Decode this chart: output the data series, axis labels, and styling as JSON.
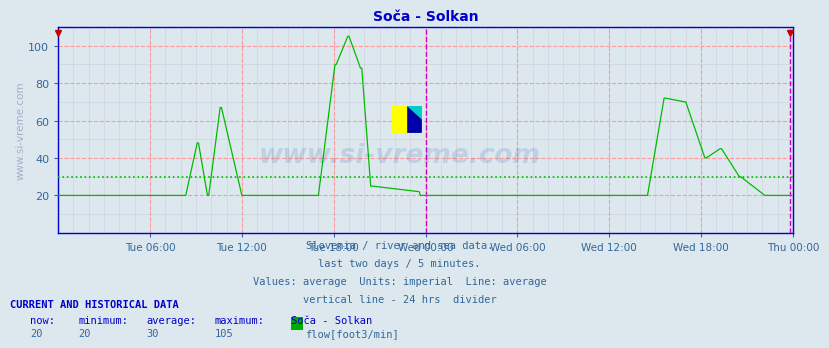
{
  "title": "Soča - Solkan",
  "title_color": "#0000cc",
  "bg_color": "#dde8ee",
  "plot_bg_color": "#dde8ee",
  "ylabel_text": "www.si-vreme.com",
  "ylabel_color": "#aaaacc",
  "line_color": "#00bb00",
  "average_line_color": "#00bb00",
  "average_value": 30,
  "ylim": [
    0,
    110
  ],
  "yticks": [
    20,
    40,
    60,
    80,
    100
  ],
  "grid_color_major": "#ff9999",
  "grid_color_minor": "#ccccdd",
  "axis_color": "#0000cc",
  "tick_label_color": "#336699",
  "divider_line_color": "#cc00cc",
  "end_marker_color": "#cc0000",
  "caption_lines": [
    "Slovenia / river and sea data.",
    "last two days / 5 minutes.",
    "Values: average  Units: imperial  Line: average",
    "vertical line - 24 hrs  divider"
  ],
  "caption_color": "#336699",
  "footer_header": "CURRENT AND HISTORICAL DATA",
  "footer_header_color": "#0000cc",
  "footer_labels": [
    "now:",
    "minimum:",
    "average:",
    "maximum:",
    "Soča - Solkan"
  ],
  "footer_values": [
    "20",
    "20",
    "30",
    "105"
  ],
  "footer_legend_color": "#00aa00",
  "footer_legend_label": "flow[foot3/min]",
  "num_points": 576,
  "x_tick_labels": [
    "Tue 06:00",
    "Tue 12:00",
    "Tue 18:00",
    "Wed 00:00",
    "Wed 06:00",
    "Wed 12:00",
    "Wed 18:00",
    "Thu 00:00"
  ],
  "x_tick_positions": [
    72,
    144,
    216,
    288,
    360,
    432,
    504,
    576
  ],
  "divider_x": 288,
  "end_x": 574,
  "watermark_text": "www.si-vreme.com",
  "watermark_color": "#003399",
  "watermark_alpha": 0.13
}
